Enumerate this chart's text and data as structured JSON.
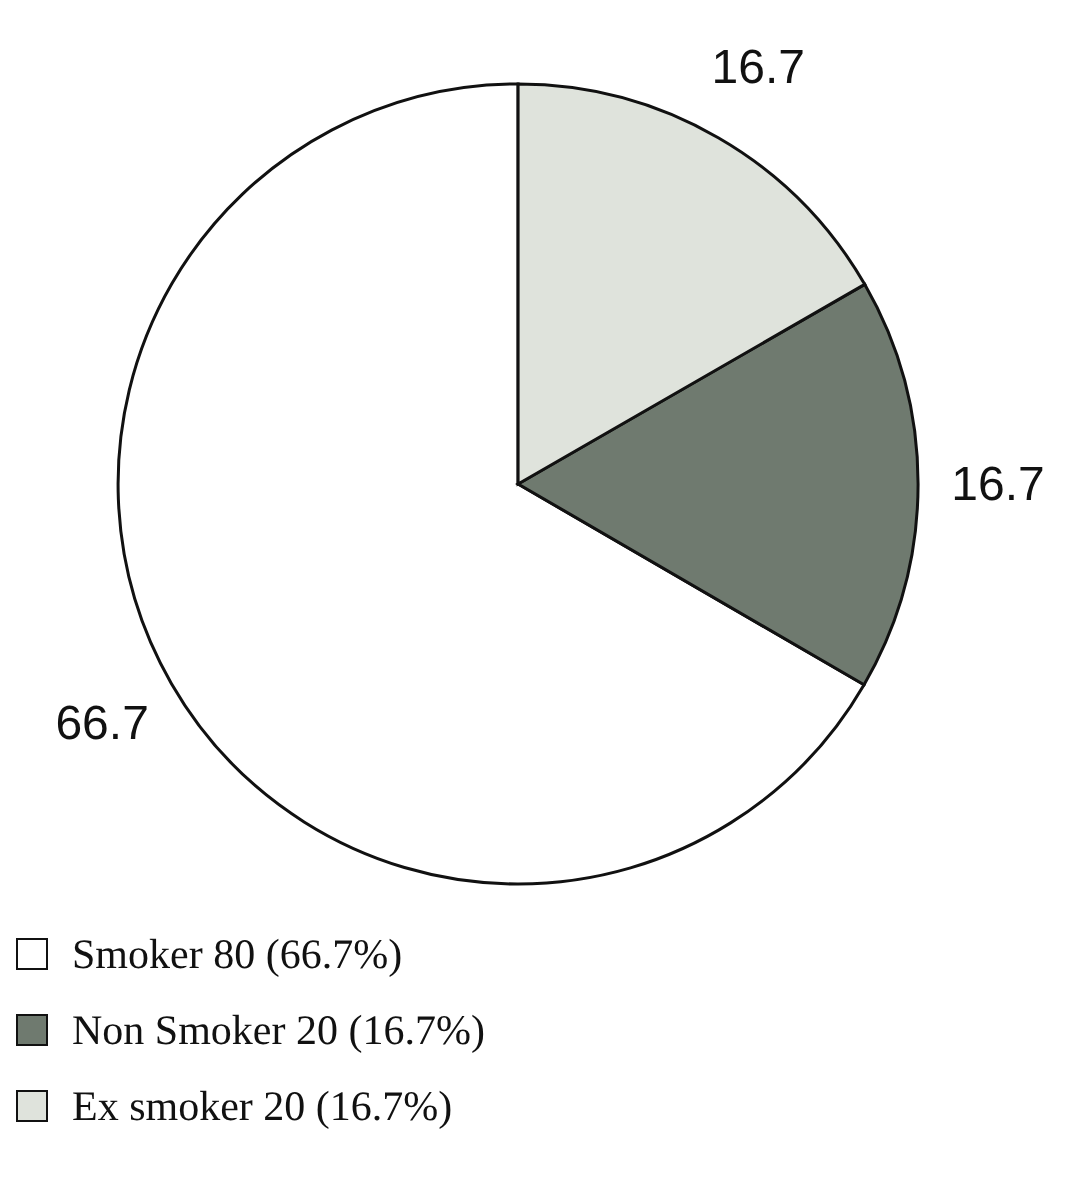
{
  "chart_data": {
    "type": "pie",
    "categories": [
      "Smoker 80 (66.7%)",
      "Non Smoker 20 (16.7%)",
      "Ex smoker 20 (16.7%)"
    ],
    "values": [
      66.7,
      16.7,
      16.7
    ],
    "colors": [
      "#ffffff",
      "#6f7a6f",
      "#dfe3dc"
    ],
    "data_labels": true,
    "legend": "bottom left"
  }
}
